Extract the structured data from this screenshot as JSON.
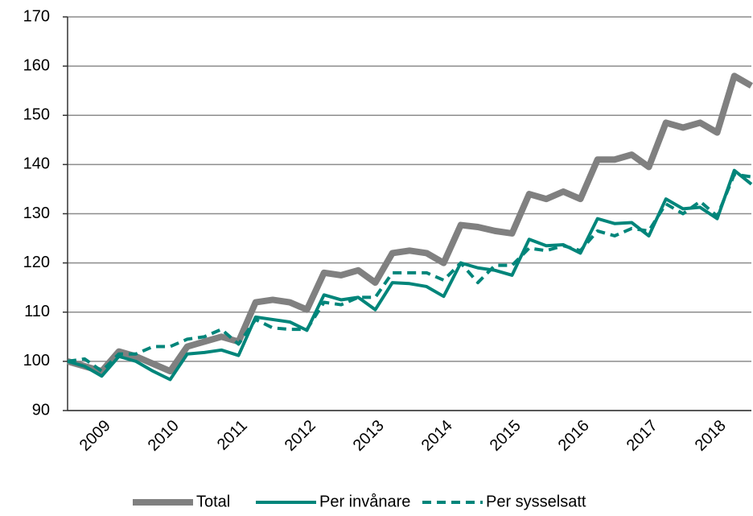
{
  "chart_data": {
    "type": "line",
    "categories": [
      null,
      null,
      "2009",
      null,
      null,
      null,
      "2010",
      null,
      null,
      null,
      "2011",
      null,
      null,
      null,
      "2012",
      null,
      null,
      null,
      "2013",
      null,
      null,
      null,
      "2014",
      null,
      null,
      null,
      "2015",
      null,
      null,
      null,
      "2016",
      null,
      null,
      null,
      "2017",
      null,
      null,
      null,
      "2018",
      null,
      null
    ],
    "series": [
      {
        "name": "Total",
        "color": "#808080",
        "dash": false,
        "values": [
          100,
          99,
          98,
          102,
          101,
          99.5,
          98,
          103,
          104,
          105,
          104,
          112,
          112.5,
          112,
          110.5,
          118,
          117.5,
          118.5,
          116,
          122,
          122.5,
          122,
          120,
          127.7,
          127.3,
          126.5,
          126,
          134,
          133,
          134.5,
          133,
          141,
          141,
          142,
          139.5,
          148.5,
          147.5,
          148.5,
          146.5,
          158,
          156
        ]
      },
      {
        "name": "Per invånare",
        "color": "#00857a",
        "dash": false,
        "values": [
          100,
          99,
          97,
          101,
          100,
          98,
          96.3,
          101.5,
          101.8,
          102.3,
          101.2,
          109,
          108.5,
          108,
          106.3,
          113.5,
          112.5,
          113,
          110.5,
          116,
          115.8,
          115.2,
          113.2,
          120,
          119,
          118.5,
          117.5,
          124.8,
          123.5,
          123.7,
          122,
          129,
          128,
          128.2,
          125.5,
          133,
          131,
          131.3,
          129,
          138.8,
          136
        ]
      },
      {
        "name": "Per sysselsatt",
        "color": "#00857a",
        "dash": true,
        "values": [
          100,
          100.5,
          98,
          101.5,
          101.5,
          103,
          103,
          104.5,
          105,
          106.5,
          103.5,
          108.5,
          106.8,
          106.5,
          106.5,
          112,
          111.5,
          113,
          113,
          118,
          118,
          118,
          116.5,
          120,
          116,
          119.5,
          119.5,
          123,
          122.5,
          123.5,
          122.5,
          126.5,
          125.5,
          127,
          126.5,
          132,
          130,
          132.5,
          129.5,
          138,
          137.5
        ]
      }
    ],
    "ylim": [
      90,
      170
    ],
    "yticks": [
      90,
      100,
      110,
      120,
      130,
      140,
      150,
      160,
      170
    ],
    "grid": true,
    "legend": "bottom"
  }
}
